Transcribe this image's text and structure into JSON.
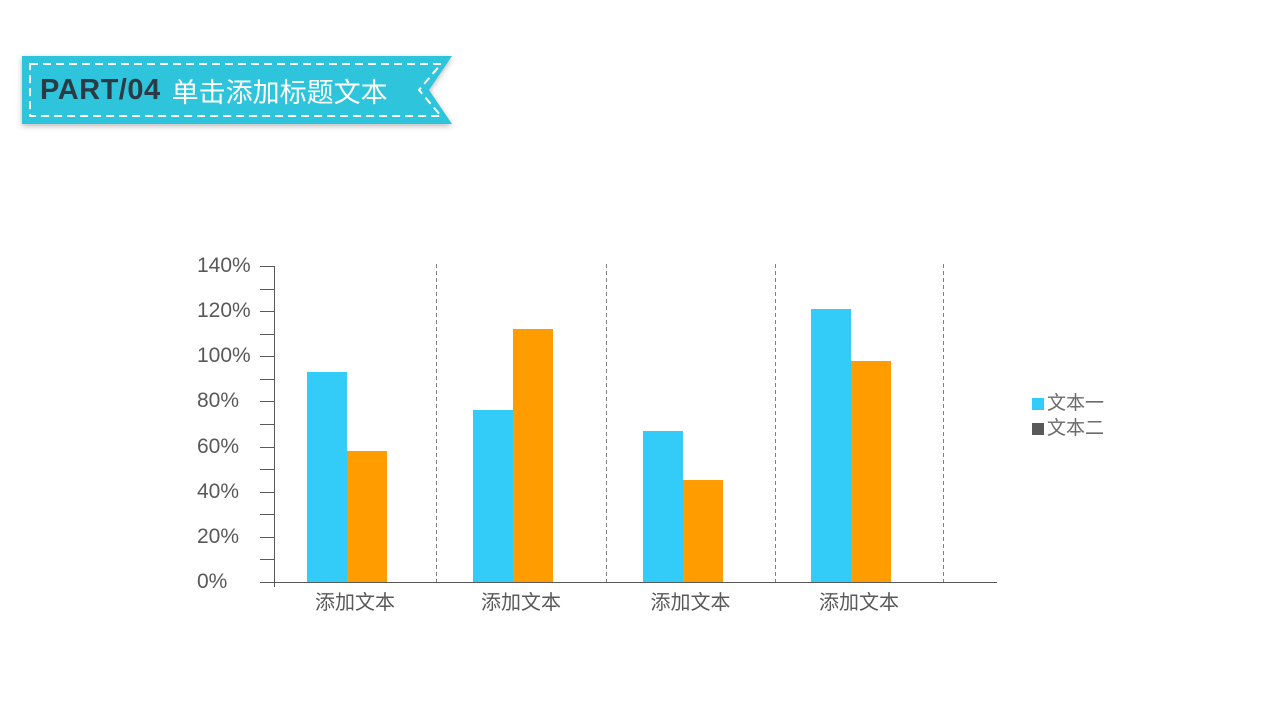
{
  "header": {
    "part_label": "PART/04",
    "title": "单击添加标题文本"
  },
  "colors": {
    "ribbon": "#2EC4DB",
    "ribbon_dash": "#FFFFFF",
    "part_text": "#2B3A45",
    "title_text": "#FFFFFF",
    "axis": "#595959",
    "axis_label_text": "#595959",
    "separator": "#7F7F7F",
    "legend_text": "#6B6B6B"
  },
  "chart_data": {
    "type": "bar",
    "title": "",
    "xlabel": "",
    "ylabel": "",
    "categories": [
      "添加文本",
      "添加文本",
      "添加文本",
      "添加文本"
    ],
    "series": [
      {
        "name": "文本一",
        "values": [
          93,
          76,
          67,
          121
        ],
        "color": "#33CBF8",
        "swatch": "#33CBF8"
      },
      {
        "name": "文本二",
        "values": [
          58,
          112,
          45,
          98
        ],
        "color": "#FF9D00",
        "swatch": "#595959"
      }
    ],
    "unit": "%",
    "ylim": [
      0,
      140
    ],
    "y_tick_labels": [
      "0%",
      "20%",
      "40%",
      "60%",
      "80%",
      "100%",
      "120%",
      "140%"
    ],
    "y_major_step": 20,
    "y_minor_step": 10,
    "gridlines": "vertical-dashed-category-separators",
    "legend_position": "right"
  }
}
